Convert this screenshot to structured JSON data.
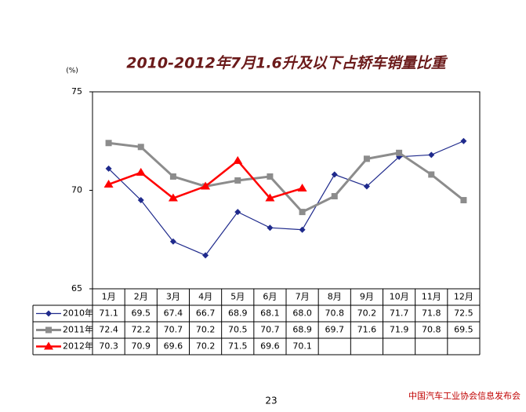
{
  "chart_data": {
    "type": "line",
    "title": "2010-2012年7月1.6升及以下占轿车销量比重",
    "y_label": "(%)",
    "categories": [
      "1月",
      "2月",
      "3月",
      "4月",
      "5月",
      "6月",
      "7月",
      "8月",
      "9月",
      "10月",
      "11月",
      "12月"
    ],
    "series": [
      {
        "name": "2010年",
        "color": "#1f2a8c",
        "marker": "diamond",
        "values": [
          71.1,
          69.5,
          67.4,
          66.7,
          68.9,
          68.1,
          68.0,
          70.8,
          70.2,
          71.7,
          71.8,
          72.5
        ],
        "value_labels": [
          "71.1",
          "69.5",
          "67.4",
          "66.7",
          "68.9",
          "68.1",
          "68.0",
          "70.8",
          "70.2",
          "71.7",
          "71.8",
          "72.5"
        ]
      },
      {
        "name": "2011年",
        "color": "#8c8c8c",
        "marker": "square",
        "values": [
          72.4,
          72.2,
          70.7,
          70.2,
          70.5,
          70.7,
          68.9,
          69.7,
          71.6,
          71.9,
          70.8,
          69.5
        ],
        "value_labels": [
          "72.4",
          "72.2",
          "70.7",
          "70.2",
          "70.5",
          "70.7",
          "68.9",
          "69.7",
          "71.6",
          "71.9",
          "70.8",
          "69.5"
        ]
      },
      {
        "name": "2012年",
        "color": "#ff0000",
        "marker": "triangle",
        "values": [
          70.3,
          70.9,
          69.6,
          70.2,
          71.5,
          69.6,
          70.1,
          null,
          null,
          null,
          null,
          null
        ],
        "value_labels": [
          "70.3",
          "70.9",
          "69.6",
          "70.2",
          "71.5",
          "69.6",
          "70.1",
          null,
          null,
          null,
          null,
          null
        ]
      }
    ],
    "ylim": [
      65,
      75
    ],
    "yticks": [
      65,
      70,
      75
    ],
    "grid": false
  },
  "footer": {
    "page_number": "23",
    "source": "中国汽车工业协会信息发布会"
  }
}
